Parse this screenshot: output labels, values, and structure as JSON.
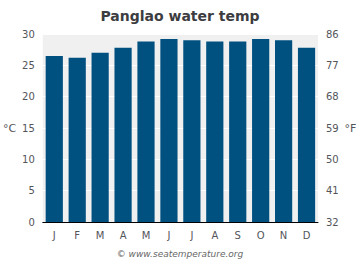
{
  "chart_data": {
    "type": "bar",
    "title": "Panglao water temp",
    "categories": [
      "J",
      "F",
      "M",
      "A",
      "M",
      "J",
      "J",
      "A",
      "S",
      "O",
      "N",
      "D"
    ],
    "values": [
      26.5,
      26.2,
      27.0,
      27.8,
      28.8,
      29.2,
      29.0,
      28.8,
      28.8,
      29.2,
      29.0,
      27.8
    ],
    "color": "#005080",
    "ylim": [
      0,
      30
    ],
    "yticks": [
      0,
      5,
      10,
      15,
      20,
      25,
      30
    ],
    "y2lim": [
      32,
      86
    ],
    "y2ticks": [
      32,
      41,
      50,
      59,
      68,
      77,
      86
    ],
    "ylabel": "°C",
    "y2label": "°F",
    "annotations": [
      "© www.seatemperature.org"
    ],
    "grid": true
  }
}
